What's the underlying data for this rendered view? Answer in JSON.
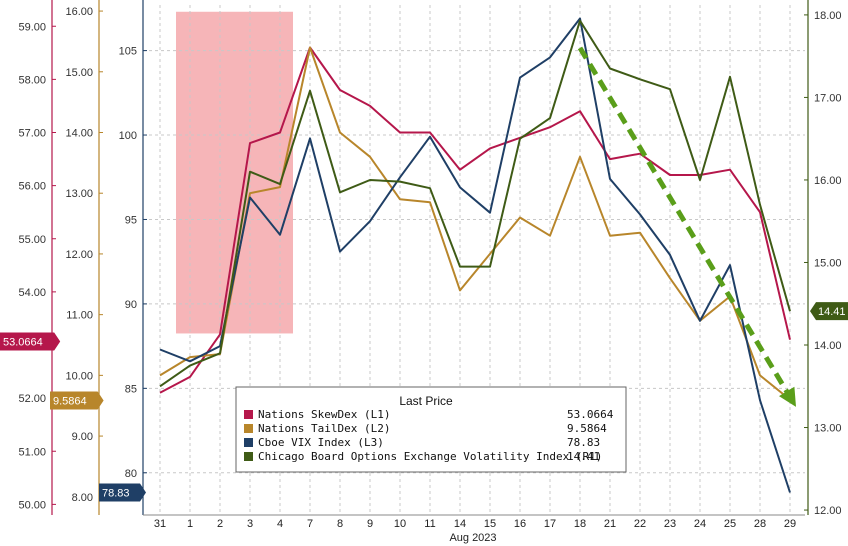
{
  "chart_data": {
    "type": "line",
    "xlabel": "Aug 2023",
    "categories": [
      "31",
      "1",
      "2",
      "3",
      "4",
      "7",
      "8",
      "9",
      "10",
      "11",
      "14",
      "15",
      "16",
      "17",
      "18",
      "21",
      "22",
      "23",
      "24",
      "25",
      "28",
      "29"
    ],
    "series": [
      {
        "name": "Nations SkewDex",
        "legend_label": "Nations SkewDex  (L1)",
        "last_price": "53.0664",
        "axis": "L1",
        "color": "#b5174b",
        "values": [
          52.1,
          52.4,
          53.2,
          56.8,
          57.0,
          58.6,
          57.8,
          57.5,
          57.0,
          57.0,
          56.3,
          56.7,
          56.9,
          57.1,
          57.4,
          56.5,
          56.6,
          56.2,
          56.2,
          56.3,
          55.5,
          53.1
        ]
      },
      {
        "name": "Nations TailDex",
        "legend_label": "Nations TailDex  (L2)",
        "last_price": "9.5864",
        "axis": "L2",
        "color": "#b8862b",
        "values": [
          10.0,
          10.3,
          10.35,
          13.0,
          13.1,
          15.4,
          14.0,
          13.6,
          12.9,
          12.85,
          11.4,
          12.0,
          12.6,
          12.3,
          13.6,
          12.3,
          12.35,
          11.6,
          10.9,
          11.3,
          10.0,
          9.6
        ]
      },
      {
        "name": "Cboe VIX Index",
        "legend_label": "Cboe VIX Index  (L3)",
        "last_price": "78.83",
        "axis": "L3",
        "color": "#1f3f66",
        "values": [
          87.3,
          86.6,
          87.5,
          96.3,
          94.1,
          99.8,
          93.1,
          94.9,
          97.5,
          99.9,
          96.9,
          95.4,
          103.4,
          104.6,
          106.9,
          97.4,
          95.3,
          92.9,
          89.0,
          92.3,
          84.3,
          78.83
        ]
      },
      {
        "name": "Chicago Board Options Exchange Volatility Index",
        "legend_label": "Chicago Board Options Exchange Volatility Index  (R1)",
        "last_price": "14.41",
        "axis": "R1",
        "color": "#3f5b16",
        "values": [
          13.5,
          13.75,
          13.9,
          16.1,
          15.95,
          17.08,
          15.85,
          16.0,
          15.98,
          15.9,
          14.95,
          14.95,
          16.5,
          16.75,
          17.93,
          17.35,
          17.22,
          17.1,
          16.0,
          17.25,
          15.7,
          14.41
        ]
      }
    ],
    "axes": {
      "L1": {
        "ylim": [
          49.8,
          59.4
        ],
        "ticks": [
          "50.00",
          "51.00",
          "52.00",
          "53.00",
          "54.00",
          "55.00",
          "56.00",
          "57.00",
          "58.00",
          "59.00"
        ]
      },
      "L2": {
        "ylim": [
          7.7,
          16.1
        ],
        "ticks": [
          "8.00",
          "9.00",
          "10.00",
          "11.00",
          "12.00",
          "13.00",
          "14.00",
          "15.00",
          "16.00"
        ]
      },
      "L3": {
        "ylim": [
          77.5,
          107.7
        ],
        "ticks": [
          "80",
          "85",
          "90",
          "95",
          "100",
          "105"
        ]
      },
      "R1": {
        "ylim": [
          11.94,
          18.12
        ],
        "ticks": [
          "12.00",
          "13.00",
          "14.00",
          "15.00",
          "16.00",
          "17.00",
          "18.00"
        ]
      }
    },
    "badges": [
      {
        "axis": "L1",
        "text": "53.0664",
        "value": 53.0664,
        "color": "#b5174b"
      },
      {
        "axis": "L2",
        "text": "9.5864",
        "value": 9.5864,
        "color": "#b8862b"
      },
      {
        "axis": "L3",
        "text": "78.83",
        "value": 78.83,
        "color": "#1f3f66"
      },
      {
        "axis": "R1",
        "text": "14.41",
        "value": 14.41,
        "color": "#3f5b16"
      }
    ],
    "highlight": {
      "from_category": "1",
      "to_category": "4",
      "color": "#f4a8ab",
      "y_top": 107.3,
      "y_bottom": 88.25,
      "axis": "L3"
    },
    "trend_arrow": {
      "from_category": "18",
      "to_category": "29",
      "from_value": 17.6,
      "to_value": 13.25,
      "axis": "R1",
      "color": "#5a9e1a"
    },
    "legend": {
      "title": "Last Price",
      "placement": "bottom-center"
    },
    "grid": true
  }
}
